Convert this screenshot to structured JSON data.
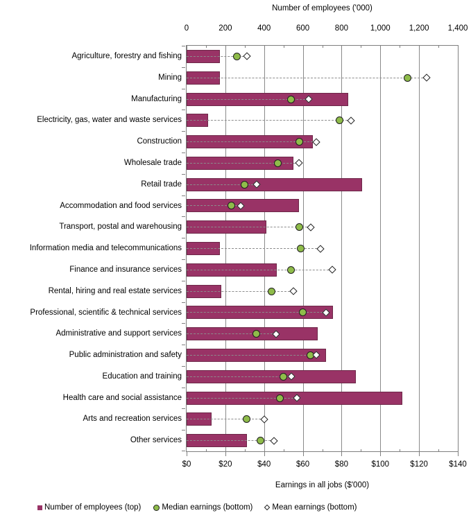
{
  "chart_data": {
    "type": "bar",
    "orientation": "horizontal",
    "title_top": "Number of employees ('000)",
    "title_bottom": "Earnings in all jobs ($'000)",
    "grid": true,
    "legend_position": "bottom",
    "top_axis": {
      "min": 0,
      "max": 1400,
      "tick_interval": 200,
      "tick_labels": [
        "0",
        "200",
        "400",
        "600",
        "800",
        "1,000",
        "1,200",
        "1,400"
      ]
    },
    "bottom_axis": {
      "min": 0,
      "max": 140,
      "tick_interval": 20,
      "tick_labels": [
        "$0",
        "$20",
        "$40",
        "$60",
        "$80",
        "$100",
        "$120",
        "$140"
      ]
    },
    "categories": [
      "Agriculture, forestry and fishing",
      "Mining",
      "Manufacturing",
      "Electricity, gas, water and waste services",
      "Construction",
      "Wholesale trade",
      "Retail trade",
      "Accommodation and food services",
      "Transport, postal and warehousing",
      "Information media and telecommunications",
      "Finance and insurance services",
      "Rental, hiring and real estate services",
      "Professional, scientific & technical services",
      "Administrative and support services",
      "Public administration and safety",
      "Education and training",
      "Health care and social assistance",
      "Arts and recreation services",
      "Other services"
    ],
    "series": [
      {
        "name": "Number of employees (top)",
        "axis": "top",
        "style": "bar",
        "color": "#993366",
        "border_color": "#6d2748",
        "values": [
          170,
          170,
          835,
          110,
          650,
          550,
          905,
          580,
          410,
          170,
          465,
          180,
          755,
          675,
          720,
          875,
          1115,
          130,
          310
        ]
      },
      {
        "name": "Median earnings (bottom)",
        "axis": "bottom",
        "style": "circle-marker",
        "color": "#8fbc4a",
        "border_color": "#1f1f1f",
        "values": [
          26,
          114,
          54,
          79,
          58,
          47,
          30,
          23,
          58,
          59,
          54,
          44,
          60,
          36,
          64,
          50,
          48,
          31,
          38
        ]
      },
      {
        "name": "Mean earnings (bottom)",
        "axis": "bottom",
        "style": "diamond-marker",
        "color": "#ffffff",
        "border_color": "#1f1f1f",
        "values": [
          31,
          124,
          63,
          85,
          67,
          58,
          36,
          28,
          64,
          69,
          75,
          55,
          72,
          46,
          67,
          54,
          57,
          40,
          45
        ]
      }
    ],
    "colors": {
      "bar": "#993366",
      "median_marker": "#8fbc4a",
      "mean_marker": "#ffffff",
      "gridline": "#8a8a8a",
      "connector": "#8c8c8c"
    }
  }
}
